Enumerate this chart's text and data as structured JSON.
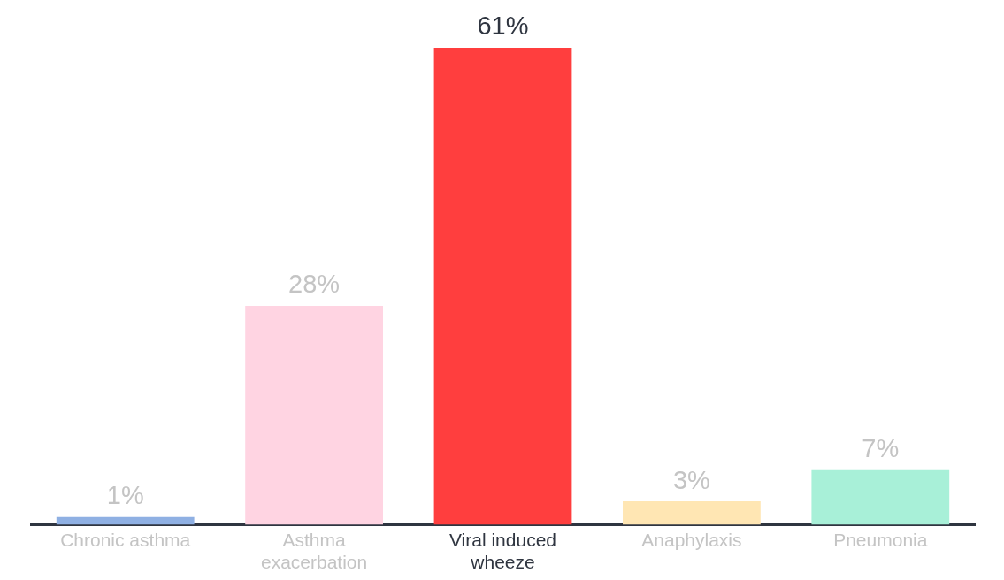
{
  "chart_data": {
    "type": "bar",
    "categories": [
      "Chronic asthma",
      "Asthma exacerbation",
      "Viral induced wheeze",
      "Anaphylaxis",
      "Pneumonia"
    ],
    "values": [
      1,
      28,
      61,
      3,
      7
    ],
    "colors": [
      "#8fb0e3",
      "#ffd4e2",
      "#ff3e3e",
      "#ffe6b3",
      "#a8f0d8"
    ],
    "value_labels": [
      "1%",
      "28%",
      "61%",
      "3%",
      "7%"
    ],
    "grid": false,
    "legend": false,
    "tick_labels": "x"
  }
}
